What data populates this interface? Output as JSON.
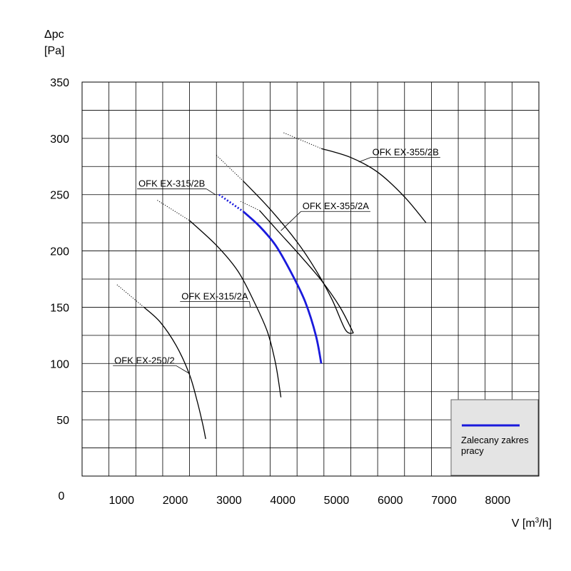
{
  "chart_data": {
    "type": "line",
    "ylabel": "Δpc",
    "ylabel_unit": "[Pa]",
    "xlabel_prefix": "V [m",
    "xlabel_sup": "3",
    "xlabel_suffix": "/h]",
    "origin_label": "0",
    "xlim": [
      0,
      8500
    ],
    "ylim": [
      0,
      350
    ],
    "x_ticks": [
      1000,
      2000,
      3000,
      4000,
      5000,
      6000,
      7000,
      8000
    ],
    "y_ticks": [
      50,
      100,
      150,
      200,
      250,
      300,
      350
    ],
    "x_grid_step": 500,
    "y_grid_step": 25,
    "grid": true,
    "curve_color": "#000000",
    "series": [
      {
        "name": "OFK EX-250/2",
        "dotted": [
          [
            650,
            170
          ],
          [
            1150,
            150
          ]
        ],
        "solid": [
          [
            1150,
            150
          ],
          [
            1450,
            137
          ],
          [
            1750,
            116
          ],
          [
            2000,
            90
          ],
          [
            2150,
            65
          ],
          [
            2250,
            45
          ],
          [
            2300,
            33
          ]
        ],
        "label_at": [
          600,
          100
        ],
        "leader_to": [
          2000,
          91
        ]
      },
      {
        "name": "OFK EX-315/2A",
        "dotted": [
          [
            1400,
            245
          ],
          [
            2000,
            227
          ]
        ],
        "solid": [
          [
            2000,
            227
          ],
          [
            2500,
            205
          ],
          [
            2900,
            182
          ],
          [
            3200,
            155
          ],
          [
            3450,
            128
          ],
          [
            3600,
            100
          ],
          [
            3700,
            70
          ]
        ],
        "label_at": [
          1850,
          157
        ],
        "leader_to": [
          3130,
          150
        ]
      },
      {
        "name": "OFK EX-315/2B",
        "dotted": [
          [
            2500,
            285
          ],
          [
            3000,
            262
          ]
        ],
        "solid": [
          [
            3000,
            262
          ],
          [
            3500,
            237
          ],
          [
            4000,
            208
          ],
          [
            4350,
            183
          ],
          [
            4650,
            157
          ],
          [
            4900,
            130
          ],
          [
            5050,
            127
          ]
        ],
        "label_at": [
          1050,
          257
        ],
        "leader_to": [
          2480,
          250
        ]
      },
      {
        "name": "OFK EX-355/2A",
        "dotted": [
          [
            2950,
            244
          ],
          [
            3300,
            236
          ]
        ],
        "solid": [
          [
            3300,
            236
          ],
          [
            3600,
            220
          ],
          [
            4000,
            199
          ],
          [
            4450,
            174
          ],
          [
            4800,
            150
          ],
          [
            5050,
            127
          ]
        ],
        "label_at": [
          4100,
          237
        ],
        "leader_to": [
          3700,
          218
        ]
      },
      {
        "name": "OFK EX-355/2B",
        "dotted": [
          [
            3750,
            305
          ],
          [
            4450,
            291
          ]
        ],
        "solid": [
          [
            4450,
            291
          ],
          [
            5000,
            283
          ],
          [
            5500,
            270
          ],
          [
            6000,
            248
          ],
          [
            6400,
            225
          ]
        ],
        "label_at": [
          5400,
          285
        ],
        "leader_to": [
          5150,
          279
        ]
      }
    ],
    "recommended": {
      "color": "#1a1adc",
      "dotted": [
        [
          2550,
          250
        ],
        [
          3000,
          235
        ]
      ],
      "solid": [
        [
          3000,
          235
        ],
        [
          3300,
          222
        ],
        [
          3600,
          205
        ],
        [
          3900,
          180
        ],
        [
          4150,
          155
        ],
        [
          4350,
          125
        ],
        [
          4450,
          100
        ]
      ]
    },
    "legend": {
      "label_line1": "Zalecany zakres",
      "label_line2": "pracy",
      "placement": "bottom-right"
    }
  }
}
